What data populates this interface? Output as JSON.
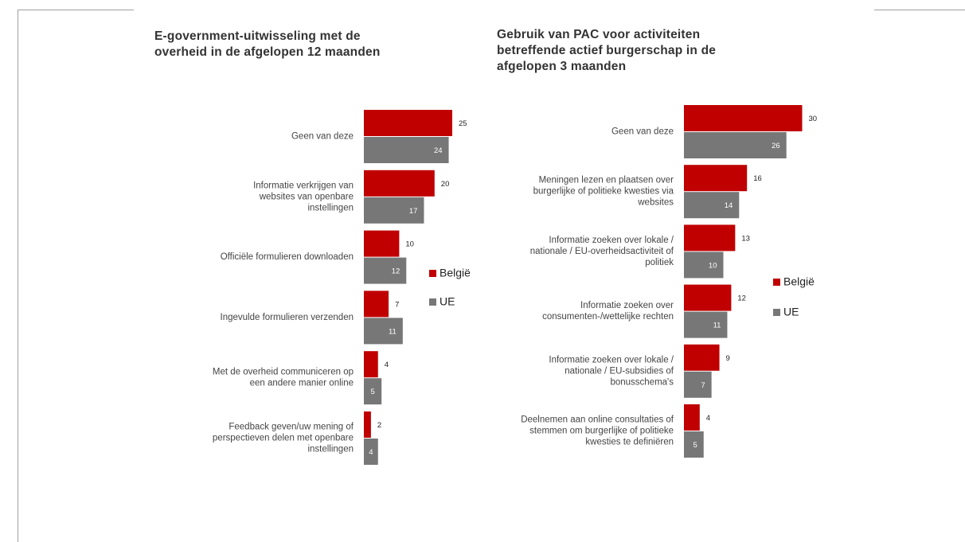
{
  "colors": {
    "belgie": "#c00000",
    "ue": "#777777",
    "frame": "#a0a0a0"
  },
  "chart_data": [
    {
      "type": "bar",
      "orientation": "horizontal",
      "title": "E-government-uitwisseling met de overheid in de afgelopen 12 maanden",
      "title_lines": [
        "E-government-uitwisseling met de",
        "overheid in de afgelopen 12 maanden"
      ],
      "categories": [
        "Geen van deze",
        "Informatie verkrijgen van websites van openbare instellingen",
        "Officiële formulieren downloaden",
        "Ingevulde formulieren verzenden",
        "Met de overheid communiceren op een andere manier online",
        "Feedback geven/uw mening of perspectieven delen met openbare instellingen"
      ],
      "category_lines": [
        [
          "Geen van deze"
        ],
        [
          "Informatie verkrijgen van",
          "websites van openbare",
          "instellingen"
        ],
        [
          "Officiële formulieren downloaden"
        ],
        [
          "Ingevulde formulieren verzenden"
        ],
        [
          "Met de overheid communiceren op",
          "een andere manier online"
        ],
        [
          "Feedback geven/uw mening of",
          "perspectieven delen met openbare",
          "instellingen"
        ]
      ],
      "series": [
        {
          "name": "België",
          "values": [
            25,
            20,
            10,
            7,
            4,
            2
          ]
        },
        {
          "name": "UE",
          "values": [
            24,
            17,
            12,
            11,
            5,
            4
          ]
        }
      ],
      "legend": [
        "België",
        "UE"
      ],
      "legend_position": "right"
    },
    {
      "type": "bar",
      "orientation": "horizontal",
      "title": "Gebruik van PAC voor activiteiten betreffende actief burgerschap in de afgelopen 3 maanden",
      "title_lines": [
        "Gebruik van PAC voor activiteiten",
        "betreffende actief burgerschap in de",
        "afgelopen 3 maanden"
      ],
      "categories": [
        "Geen van deze",
        "Meningen lezen en plaatsen over burgerlijke of politieke kwesties via websites",
        "Informatie zoeken over lokale / nationale / EU-overheidsactiviteit of politiek",
        "Informatie zoeken over consumenten-/wettelijke rechten",
        "Informatie zoeken over lokale / nationale / EU-subsidies of bonusschema's",
        "Deelnemen aan online consultaties of stemmen om burgerlijke of politieke kwesties te definiëren"
      ],
      "category_lines": [
        [
          "Geen van deze"
        ],
        [
          "Meningen lezen en plaatsen over",
          "burgerlijke of politieke kwesties via",
          "websites"
        ],
        [
          "Informatie zoeken over lokale /",
          "nationale / EU-overheidsactiviteit of",
          "politiek"
        ],
        [
          "Informatie zoeken over",
          "consumenten-/wettelijke rechten"
        ],
        [
          "Informatie zoeken over lokale /",
          "nationale / EU-subsidies of",
          "bonusschema's"
        ],
        [
          "Deelnemen aan online consultaties of",
          "stemmen om burgerlijke of politieke",
          "kwesties te definiëren"
        ]
      ],
      "series": [
        {
          "name": "België",
          "values": [
            30,
            16,
            13,
            12,
            9,
            4
          ]
        },
        {
          "name": "UE",
          "values": [
            26,
            14,
            10,
            11,
            7,
            5
          ]
        }
      ],
      "legend": [
        "België",
        "UE"
      ],
      "legend_position": "right"
    }
  ]
}
